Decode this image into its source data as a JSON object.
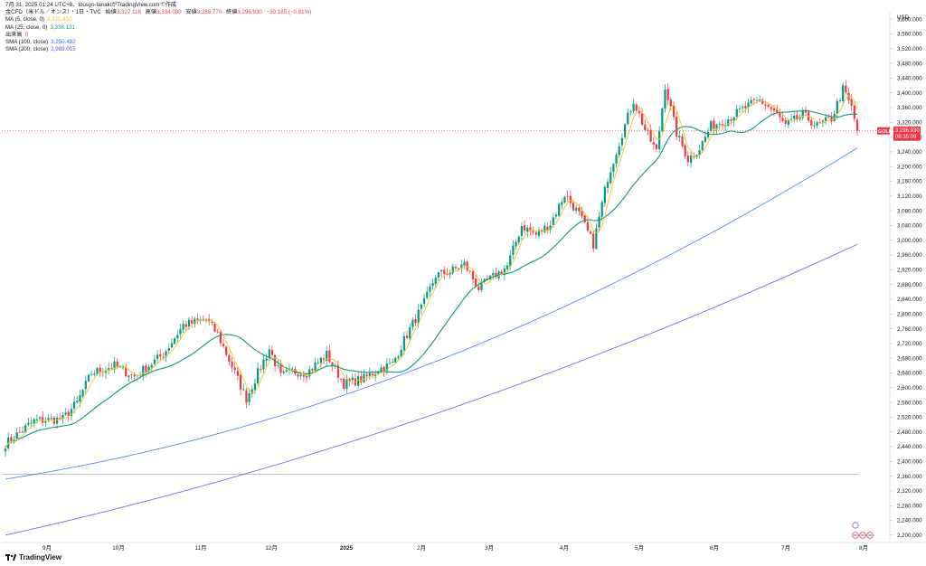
{
  "header": {
    "title_line": "7月 31, 2025 01:24 UTC+9、tousyo-tanakiがTradingView.comで作成",
    "symbol_line": "金CFD（米ドル／オンス）・1日・TVC",
    "ohlc": {
      "open_label": "始値",
      "open": "3,327.116",
      "high_label": "高値",
      "high": "3,334.080",
      "low_label": "安値",
      "low": "3,288.770",
      "close_label": "終値",
      "close": "3,296.930",
      "change": "−30.185 (−0.91%)"
    },
    "indicators": [
      {
        "label": "MA (5, close, 0)",
        "value": "3,325.450",
        "color": "#f2c811"
      },
      {
        "label": "MA (25, close, 0)",
        "value": "3,338.131",
        "color": "#089981"
      },
      {
        "label": "出来高",
        "value": "0",
        "color": "#f23645"
      },
      {
        "label": "SMA (100, close)",
        "value": "3,250.482",
        "color": "#2962ff"
      },
      {
        "label": "SMA (200, close)",
        "value": "2,989.015",
        "color": "#5b4ae0"
      }
    ]
  },
  "price_axis": {
    "currency": "USD",
    "ticks": [
      "3,600.000",
      "3,560.000",
      "3,520.000",
      "3,480.000",
      "3,440.000",
      "3,400.000",
      "3,360.000",
      "3,320.000",
      "3,280.000",
      "3,240.000",
      "3,200.000",
      "3,160.000",
      "3,120.000",
      "3,080.000",
      "3,040.000",
      "3,000.000",
      "2,960.000",
      "2,920.000",
      "2,880.000",
      "2,840.000",
      "2,800.000",
      "2,760.000",
      "2,720.000",
      "2,680.000",
      "2,640.000",
      "2,600.000",
      "2,560.000",
      "2,520.000",
      "2,480.000",
      "2,440.000",
      "2,400.000",
      "2,360.000",
      "2,320.000",
      "2,280.000",
      "2,240.000",
      "2,200.000"
    ],
    "last_price_tag": {
      "symbol": "GOLD",
      "price": "3,296.930",
      "countdown": "06:35:09",
      "color": "#f23645"
    }
  },
  "time_axis": {
    "labels": [
      "9月",
      "10月",
      "11月",
      "12月",
      "2025",
      "2月",
      "3月",
      "4月",
      "5月",
      "6月",
      "7月",
      "8月"
    ]
  },
  "brand": "TradingView",
  "chart_data": {
    "type": "candlestick",
    "ylim": [
      2180,
      3620
    ],
    "colors": {
      "up": "#089981",
      "down": "#f23645",
      "ma5": "#f2c811",
      "ma25": "#089981",
      "sma100": "#2962ff",
      "sma200": "#5b4ae0",
      "hline": "#b2b5be"
    },
    "horizontal_line": 2365,
    "waypoints": [
      [
        0,
        2448
      ],
      [
        10,
        2510
      ],
      [
        20,
        2515
      ],
      [
        25,
        2560
      ],
      [
        30,
        2640
      ],
      [
        38,
        2660
      ],
      [
        45,
        2630
      ],
      [
        55,
        2690
      ],
      [
        62,
        2770
      ],
      [
        70,
        2785
      ],
      [
        74,
        2745
      ],
      [
        80,
        2640
      ],
      [
        84,
        2570
      ],
      [
        88,
        2640
      ],
      [
        92,
        2705
      ],
      [
        96,
        2630
      ],
      [
        100,
        2645
      ],
      [
        105,
        2640
      ],
      [
        112,
        2690
      ],
      [
        118,
        2610
      ],
      [
        125,
        2625
      ],
      [
        130,
        2650
      ],
      [
        135,
        2665
      ],
      [
        140,
        2745
      ],
      [
        146,
        2830
      ],
      [
        150,
        2905
      ],
      [
        155,
        2915
      ],
      [
        160,
        2935
      ],
      [
        165,
        2870
      ],
      [
        170,
        2900
      ],
      [
        175,
        2930
      ],
      [
        180,
        3040
      ],
      [
        185,
        3015
      ],
      [
        190,
        3045
      ],
      [
        195,
        3125
      ],
      [
        200,
        3070
      ],
      [
        205,
        2990
      ],
      [
        210,
        3170
      ],
      [
        215,
        3290
      ],
      [
        219,
        3380
      ],
      [
        223,
        3300
      ],
      [
        227,
        3240
      ],
      [
        230,
        3420
      ],
      [
        234,
        3290
      ],
      [
        238,
        3220
      ],
      [
        242,
        3250
      ],
      [
        246,
        3310
      ],
      [
        252,
        3330
      ],
      [
        258,
        3360
      ],
      [
        263,
        3380
      ],
      [
        268,
        3350
      ],
      [
        272,
        3310
      ],
      [
        278,
        3340
      ],
      [
        283,
        3310
      ],
      [
        288,
        3330
      ],
      [
        292,
        3410
      ],
      [
        295,
        3360
      ],
      [
        297,
        3296.93
      ]
    ],
    "ma_windows": {
      "ma5": 5,
      "ma25": 25
    },
    "sma100_range": [
      2352,
      3250.482
    ],
    "sma200_range": [
      2200,
      2989.015
    ]
  }
}
